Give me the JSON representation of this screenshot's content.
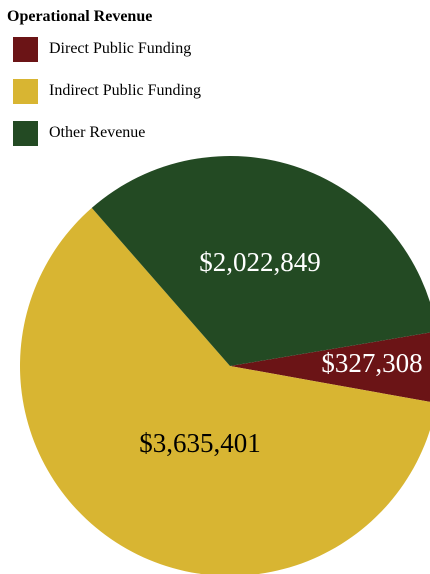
{
  "chart_data": {
    "type": "pie",
    "title": "Operational Revenue",
    "legend_position": "top-left",
    "slices": [
      {
        "name": "Direct Public Funding",
        "value": 327308,
        "label": "$327,308",
        "color": "#6b1416",
        "label_color": "#ffffff"
      },
      {
        "name": "Indirect Public Funding",
        "value": 3635401,
        "label": "$3,635,401",
        "color": "#d8b532",
        "label_color": "#000000"
      },
      {
        "name": "Other Revenue",
        "value": 2022849,
        "label": "$2,022,849",
        "color": "#234a23",
        "label_color": "#ffffff"
      }
    ]
  }
}
